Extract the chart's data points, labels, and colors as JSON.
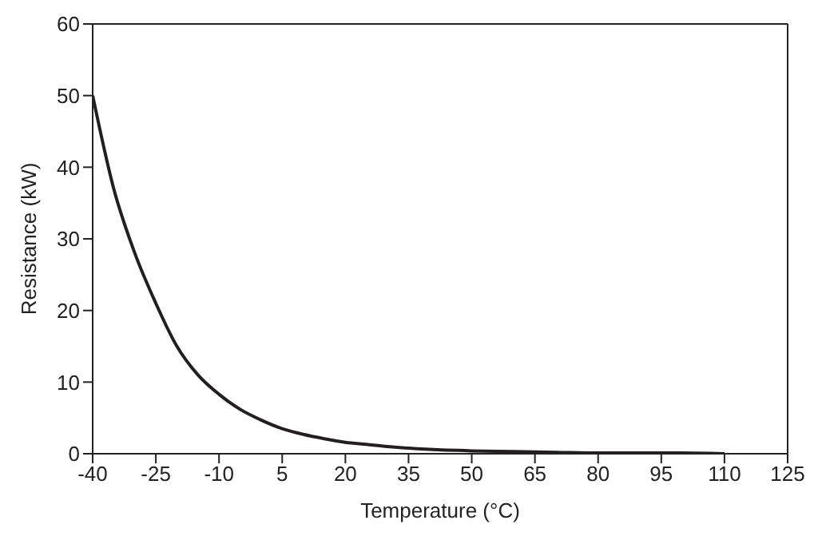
{
  "chart_data": {
    "type": "line",
    "xlabel": "Temperature (°C)",
    "ylabel": "Resistance (kW)",
    "x": [
      -40,
      -35,
      -30,
      -25,
      -20,
      -15,
      -10,
      -5,
      0,
      5,
      10,
      15,
      20,
      25,
      30,
      40,
      50,
      60,
      70,
      80,
      90,
      100,
      110
    ],
    "series": [
      {
        "color": "#231f20",
        "values": [
          50,
          37,
          28,
          21,
          15,
          11,
          8.3,
          6.2,
          4.7,
          3.5,
          2.7,
          2.1,
          1.6,
          1.3,
          1.0,
          0.6,
          0.4,
          0.3,
          0.2,
          0.1,
          0.1,
          0.1,
          0.0
        ]
      }
    ],
    "xlim": [
      -40,
      125
    ],
    "xticks": [
      -40,
      -25,
      -10,
      5,
      20,
      35,
      50,
      65,
      80,
      95,
      110,
      125
    ],
    "ylim": [
      0,
      60
    ],
    "yticks": [
      0,
      10,
      20,
      30,
      40,
      50,
      60
    ],
    "grid": false,
    "legend": false,
    "marker": "none",
    "line_style": "solid"
  }
}
